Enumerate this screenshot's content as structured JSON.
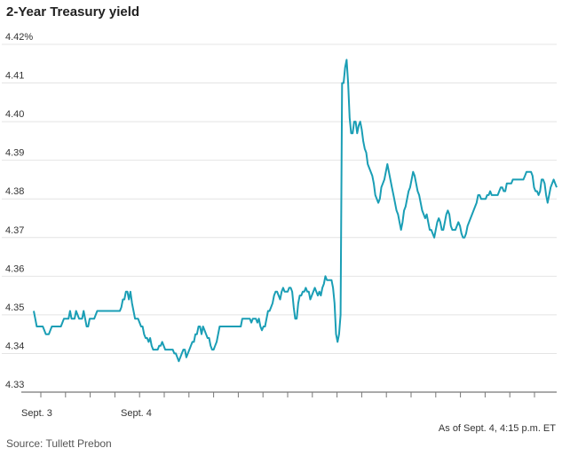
{
  "chart_data": {
    "type": "line",
    "title": "2-Year Treasury yield",
    "yticks": [
      "4.42%",
      "4.41",
      "4.40",
      "4.39",
      "4.38",
      "4.37",
      "4.36",
      "4.35",
      "4.34",
      "4.33"
    ],
    "ylim": [
      4.33,
      4.42
    ],
    "xticks": [
      "Sept. 3",
      "Sept. 4"
    ],
    "grid": true,
    "color": "#1a9eb5",
    "note": "As of Sept. 4, 4:15 p.m. ET",
    "source": "Source: Tullett Prebon",
    "series": [
      {
        "values": [
          4.351,
          4.349,
          4.347,
          4.347,
          4.347,
          4.347,
          4.347,
          4.346,
          4.345,
          4.345,
          4.345,
          4.346,
          4.347,
          4.347,
          4.347,
          4.347,
          4.347,
          4.347,
          4.347,
          4.348,
          4.349,
          4.349,
          4.349,
          4.349,
          4.351,
          4.349,
          4.349,
          4.349,
          4.351,
          4.35,
          4.349,
          4.349,
          4.349,
          4.351,
          4.349,
          4.347,
          4.347,
          4.349,
          4.349,
          4.349,
          4.349,
          4.35,
          4.351,
          4.351,
          4.351,
          4.351,
          4.351,
          4.351,
          4.351,
          4.351,
          4.351,
          4.351,
          4.351,
          4.351,
          4.351,
          4.351,
          4.351,
          4.351,
          4.352,
          4.354,
          4.354,
          4.356,
          4.356,
          4.354,
          4.356,
          4.353,
          4.351,
          4.349,
          4.349,
          4.349,
          4.348,
          4.347,
          4.347,
          4.345,
          4.344,
          4.344,
          4.343,
          4.344,
          4.342,
          4.341,
          4.341,
          4.341,
          4.341,
          4.342,
          4.342,
          4.343,
          4.342,
          4.341,
          4.341,
          4.341,
          4.341,
          4.341,
          4.341,
          4.34,
          4.34,
          4.339,
          4.338,
          4.339,
          4.34,
          4.341,
          4.341,
          4.339,
          4.34,
          4.341,
          4.342,
          4.343,
          4.343,
          4.345,
          4.345,
          4.347,
          4.347,
          4.345,
          4.347,
          4.346,
          4.345,
          4.344,
          4.344,
          4.342,
          4.341,
          4.341,
          4.342,
          4.343,
          4.345,
          4.347,
          4.347,
          4.347,
          4.347,
          4.347,
          4.347,
          4.347,
          4.347,
          4.347,
          4.347,
          4.347,
          4.347,
          4.347,
          4.347,
          4.347,
          4.349,
          4.349,
          4.349,
          4.349,
          4.349,
          4.349,
          4.348,
          4.349,
          4.349,
          4.349,
          4.348,
          4.349,
          4.347,
          4.346,
          4.347,
          4.347,
          4.349,
          4.351,
          4.351,
          4.352,
          4.353,
          4.355,
          4.356,
          4.356,
          4.355,
          4.354,
          4.356,
          4.357,
          4.356,
          4.356,
          4.356,
          4.357,
          4.357,
          4.356,
          4.352,
          4.349,
          4.349,
          4.353,
          4.355,
          4.355,
          4.356,
          4.356,
          4.357,
          4.356,
          4.356,
          4.354,
          4.355,
          4.356,
          4.357,
          4.356,
          4.355,
          4.356,
          4.355,
          4.357,
          4.358,
          4.36,
          4.359,
          4.359,
          4.359,
          4.359,
          4.357,
          4.353,
          4.345,
          4.343,
          4.345,
          4.35,
          4.41,
          4.41,
          4.414,
          4.416,
          4.41,
          4.401,
          4.397,
          4.397,
          4.4,
          4.4,
          4.397,
          4.399,
          4.4,
          4.398,
          4.395,
          4.393,
          4.392,
          4.389,
          4.388,
          4.387,
          4.386,
          4.384,
          4.381,
          4.38,
          4.379,
          4.38,
          4.383,
          4.384,
          4.385,
          4.387,
          4.389,
          4.387,
          4.385,
          4.383,
          4.381,
          4.379,
          4.377,
          4.376,
          4.374,
          4.372,
          4.374,
          4.377,
          4.378,
          4.38,
          4.382,
          4.383,
          4.385,
          4.387,
          4.386,
          4.384,
          4.382,
          4.381,
          4.379,
          4.377,
          4.376,
          4.375,
          4.376,
          4.374,
          4.372,
          4.372,
          4.371,
          4.37,
          4.372,
          4.374,
          4.375,
          4.374,
          4.372,
          4.372,
          4.374,
          4.376,
          4.377,
          4.376,
          4.373,
          4.372,
          4.372,
          4.372,
          4.373,
          4.374,
          4.373,
          4.371,
          4.37,
          4.37,
          4.371,
          4.373,
          4.374,
          4.375,
          4.376,
          4.377,
          4.378,
          4.379,
          4.381,
          4.381,
          4.38,
          4.38,
          4.38,
          4.38,
          4.381,
          4.381,
          4.382,
          4.381,
          4.381,
          4.381,
          4.381,
          4.381,
          4.382,
          4.383,
          4.383,
          4.382,
          4.382,
          4.384,
          4.384,
          4.384,
          4.384,
          4.385,
          4.385,
          4.385,
          4.385,
          4.385,
          4.385,
          4.385,
          4.385,
          4.386,
          4.387,
          4.387,
          4.387,
          4.387,
          4.386,
          4.383,
          4.382,
          4.382,
          4.381,
          4.382,
          4.385,
          4.385,
          4.384,
          4.381,
          4.379,
          4.381,
          4.383,
          4.384,
          4.385,
          4.384,
          4.383
        ]
      }
    ]
  }
}
